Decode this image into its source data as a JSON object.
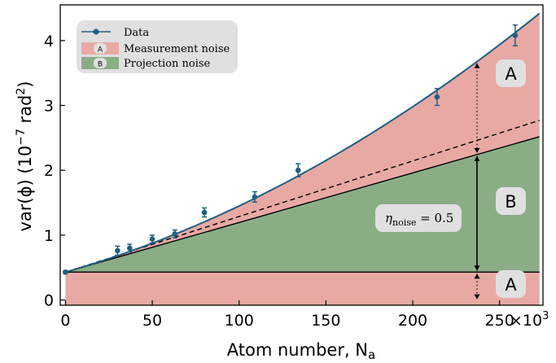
{
  "chart_data": {
    "type": "area",
    "xlabel": "Atom number, N",
    "xlabel_sub": "a",
    "ylabel": "var(ϕ) (10",
    "ylabel_exp": "−7",
    "ylabel_unit_pre": " rad",
    "ylabel_unit_exp": "2",
    "ylabel_close": ")",
    "xlim": [
      -3,
      275
    ],
    "ylim": [
      -0.08,
      4.55
    ],
    "x_multiplier_label": "×10",
    "x_multiplier_exp": "3",
    "x_ticks": [
      0,
      50,
      100,
      150,
      200,
      250
    ],
    "x_tick_labels": [
      "0",
      "50",
      "100",
      "150",
      "200",
      "250"
    ],
    "y_ticks": [
      0,
      1,
      2,
      3,
      4
    ],
    "y_tick_labels": [
      "0",
      "1",
      "2",
      "3",
      "4"
    ],
    "grid": false,
    "legend_position": "top-left",
    "colors": {
      "data": "#1f5f82",
      "measurement_noise": "#e8a9a4",
      "projection_noise": "#8bad86",
      "outline": "#000000"
    },
    "legend": [
      {
        "label": "Data",
        "kind": "marker"
      },
      {
        "label": "Measurement noise",
        "kind": "patch",
        "badge": "A"
      },
      {
        "label": "Projection noise",
        "kind": "patch",
        "badge": "B"
      }
    ],
    "series": [
      {
        "name": "Data",
        "x": [
          0,
          30,
          37,
          50,
          63,
          80,
          109,
          134,
          214,
          259
        ],
        "y": [
          0.43,
          0.76,
          0.8,
          0.94,
          1.02,
          1.35,
          1.59,
          2.0,
          3.13,
          4.08
        ],
        "yerr": [
          0.02,
          0.07,
          0.06,
          0.06,
          0.06,
          0.07,
          0.08,
          0.1,
          0.13,
          0.16
        ]
      }
    ],
    "fit_curve": {
      "baseline": 0.43,
      "linear_slope": 0.00765,
      "quadratic": 2.55e-05,
      "x_end": 273
    },
    "dashed_line": {
      "x": [
        0,
        273
      ],
      "y": [
        0.43,
        2.77
      ]
    },
    "annotations": {
      "region_upper": "A",
      "region_middle": "B",
      "region_lower": "A",
      "eta_symbol": "η",
      "eta_sub": "noise",
      "eta_value": " = 0.5",
      "arrow_x": 237
    }
  }
}
